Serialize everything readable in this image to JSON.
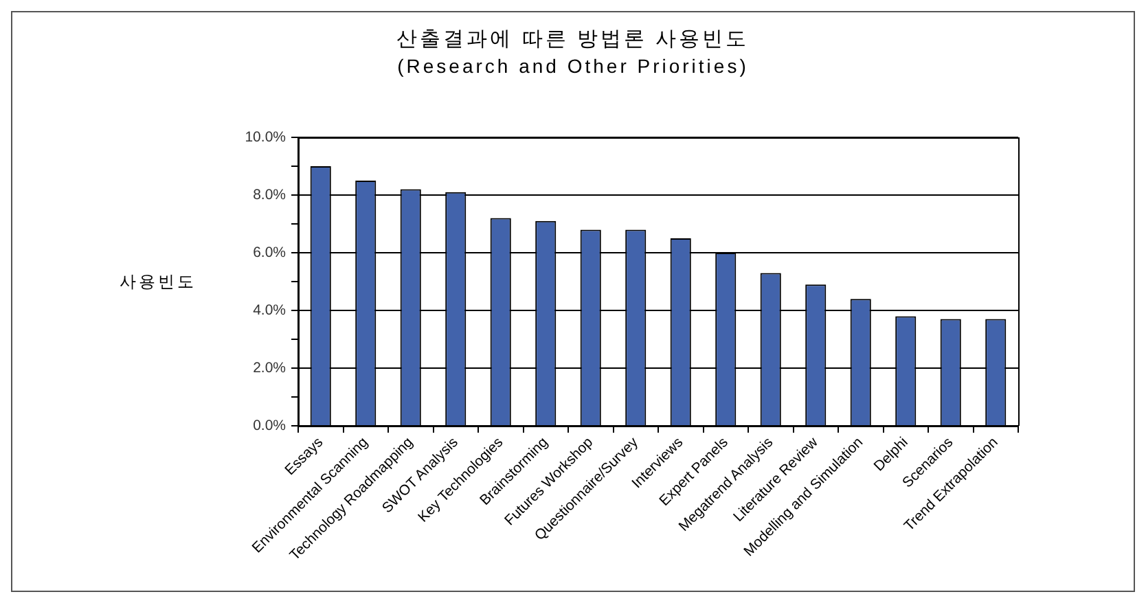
{
  "chart_data": {
    "type": "bar",
    "title": "산출결과에 따른 방법론 사용빈도",
    "subtitle": "(Research and Other Priorities)",
    "ylabel": "사용빈도",
    "categories": [
      "Essays",
      "Environmental Scanning",
      "Technology Roadmapping",
      "SWOT Analysis",
      "Key Technologies",
      "Brainstorming",
      "Futures Workshop",
      "Questionnaire/Survey",
      "Interviews",
      "Expert Panels",
      "Megatrend Analysis",
      "Literature Review",
      "Modelling and Simulation",
      "Delphi",
      "Scenarios",
      "Trend Extrapolation"
    ],
    "values": [
      9.0,
      8.5,
      8.2,
      8.1,
      7.2,
      7.1,
      6.8,
      6.8,
      6.5,
      6.0,
      5.3,
      4.9,
      4.4,
      3.8,
      3.7,
      3.7
    ],
    "color": "#4263ab",
    "ylim": [
      0,
      10
    ],
    "yticks": [
      {
        "value": 0,
        "label": "0.0%"
      },
      {
        "value": 1,
        "label": null
      },
      {
        "value": 2,
        "label": "2.0%"
      },
      {
        "value": 3,
        "label": null
      },
      {
        "value": 4,
        "label": "4.0%"
      },
      {
        "value": 5,
        "label": null
      },
      {
        "value": 6,
        "label": "6.0%"
      },
      {
        "value": 7,
        "label": null
      },
      {
        "value": 8,
        "label": "8.0%"
      },
      {
        "value": 9,
        "label": null
      },
      {
        "value": 10,
        "label": "10.0%"
      }
    ],
    "grid": "y"
  }
}
